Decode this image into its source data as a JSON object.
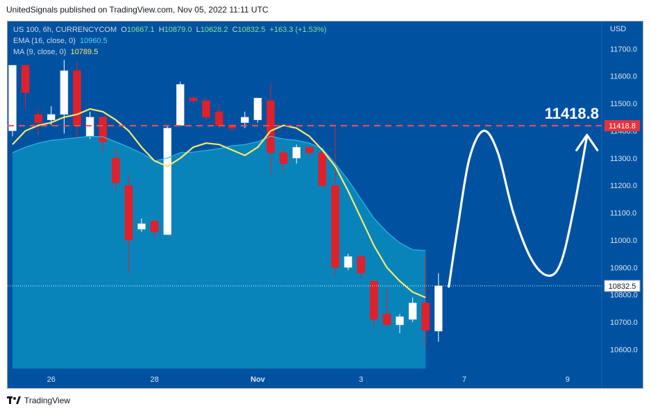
{
  "header": {
    "publisher": "UnitedSignals published on TradingView.com, Nov 05, 2022 11:11 UTC"
  },
  "legend": {
    "symbol": "US 100, 6h, CURRENCYCOM",
    "open_label": "O",
    "open": "10667.1",
    "high_label": "H",
    "high": "10879.0",
    "low_label": "L",
    "low": "10628.2",
    "close_label": "C",
    "close": "10832.5",
    "change": "+163.3 (+1.53%)",
    "ema_label": "EMA (16, close, 0)",
    "ema_value": "10960.5",
    "ma_label": "MA (9, close, 0)",
    "ma_value": "10789.5"
  },
  "footer": {
    "brand": "TradingView"
  },
  "colors": {
    "background": "#0052a1",
    "ema_fill": "#0a87bd",
    "ema_line": "#33b6e6",
    "ma_line": "#f7e96b",
    "up_candle": "#ffffff",
    "down_candle": "#e0202a",
    "target_line": "#ff4a52"
  },
  "chart_data": {
    "type": "candlestick",
    "currency": "USD",
    "ylim": [
      10530,
      11800
    ],
    "yticks": [
      10600,
      10700,
      10800,
      10900,
      11000,
      11100,
      11200,
      11300,
      11400,
      11500,
      11600,
      11700
    ],
    "ytick_labels": [
      "10600.0",
      "10700.0",
      "10800.0",
      "10900.0",
      "11000.0",
      "11100.0",
      "11200.0",
      "11300.0",
      "11400.0",
      "11500.0",
      "11600.0",
      "11700.0"
    ],
    "xticks": [
      {
        "index": 3,
        "label": "26"
      },
      {
        "index": 11,
        "label": "28"
      },
      {
        "index": 19,
        "label": "Nov"
      },
      {
        "index": 27,
        "label": "3"
      },
      {
        "index": 35,
        "label": "7"
      },
      {
        "index": 43,
        "label": "9"
      }
    ],
    "candles": [
      {
        "o": 11400,
        "h": 11640,
        "l": 11380,
        "c": 11640
      },
      {
        "o": 11640,
        "h": 11640,
        "l": 11480,
        "c": 11540
      },
      {
        "o": 11460,
        "h": 11480,
        "l": 11380,
        "c": 11430
      },
      {
        "o": 11440,
        "h": 11490,
        "l": 11420,
        "c": 11460
      },
      {
        "o": 11460,
        "h": 11660,
        "l": 11390,
        "c": 11620
      },
      {
        "o": 11620,
        "h": 11650,
        "l": 11370,
        "c": 11420
      },
      {
        "o": 11380,
        "h": 11470,
        "l": 11370,
        "c": 11450
      },
      {
        "o": 11450,
        "h": 11450,
        "l": 11320,
        "c": 11360
      },
      {
        "o": 11300,
        "h": 11340,
        "l": 11180,
        "c": 11210
      },
      {
        "o": 11200,
        "h": 11240,
        "l": 10880,
        "c": 11000
      },
      {
        "o": 11040,
        "h": 11080,
        "l": 11030,
        "c": 11060
      },
      {
        "o": 11070,
        "h": 11070,
        "l": 11010,
        "c": 11030
      },
      {
        "o": 11020,
        "h": 11420,
        "l": 11020,
        "c": 11410
      },
      {
        "o": 11420,
        "h": 11580,
        "l": 11420,
        "c": 11570
      },
      {
        "o": 11520,
        "h": 11530,
        "l": 11500,
        "c": 11510
      },
      {
        "o": 11510,
        "h": 11520,
        "l": 11440,
        "c": 11450
      },
      {
        "o": 11470,
        "h": 11500,
        "l": 11410,
        "c": 11420
      },
      {
        "o": 11420,
        "h": 11430,
        "l": 11400,
        "c": 11410
      },
      {
        "o": 11430,
        "h": 11470,
        "l": 11410,
        "c": 11450
      },
      {
        "o": 11440,
        "h": 11520,
        "l": 11430,
        "c": 11520
      },
      {
        "o": 11510,
        "h": 11570,
        "l": 11240,
        "c": 11320
      },
      {
        "o": 11320,
        "h": 11340,
        "l": 11250,
        "c": 11280
      },
      {
        "o": 11300,
        "h": 11350,
        "l": 11280,
        "c": 11340
      },
      {
        "o": 11340,
        "h": 11340,
        "l": 11310,
        "c": 11320
      },
      {
        "o": 11320,
        "h": 11330,
        "l": 11190,
        "c": 11200
      },
      {
        "o": 11200,
        "h": 11420,
        "l": 10870,
        "c": 10900
      },
      {
        "o": 10900,
        "h": 10950,
        "l": 10890,
        "c": 10940
      },
      {
        "o": 10940,
        "h": 10950,
        "l": 10860,
        "c": 10880
      },
      {
        "o": 10850,
        "h": 10850,
        "l": 10680,
        "c": 10710
      },
      {
        "o": 10730,
        "h": 10820,
        "l": 10690,
        "c": 10690
      },
      {
        "o": 10690,
        "h": 10730,
        "l": 10660,
        "c": 10720
      },
      {
        "o": 10710,
        "h": 10790,
        "l": 10700,
        "c": 10770
      },
      {
        "o": 10770,
        "h": 10940,
        "l": 10610,
        "c": 10670
      },
      {
        "o": 10667.1,
        "h": 10879.0,
        "l": 10628.2,
        "c": 10832.5
      }
    ],
    "ema": [
      11320,
      11340,
      11355,
      11365,
      11370,
      11375,
      11380,
      11378,
      11360,
      11340,
      11318,
      11290,
      11300,
      11320,
      11322,
      11328,
      11335,
      11345,
      11350,
      11360,
      11380,
      11370,
      11365,
      11355,
      11335,
      11280,
      11220,
      11150,
      11080,
      11030,
      10990,
      10965,
      10962
    ],
    "ma": [
      11350,
      11400,
      11420,
      11430,
      11450,
      11460,
      11480,
      11470,
      11440,
      11400,
      11340,
      11290,
      11270,
      11300,
      11340,
      11355,
      11350,
      11330,
      11310,
      11340,
      11400,
      11420,
      11410,
      11380,
      11330,
      11270,
      11180,
      11080,
      10980,
      10900,
      10850,
      10810,
      10790
    ],
    "last_price": 10832.5,
    "last_price_label": "10832.5",
    "target_price": 11418.8,
    "target_label": "11418.8",
    "target_axis_label": "11418.8",
    "projection_path": [
      {
        "i": 33.8,
        "p": 10830
      },
      {
        "i": 34.5,
        "p": 11050
      },
      {
        "i": 35.4,
        "p": 11300
      },
      {
        "i": 36.5,
        "p": 11400
      },
      {
        "i": 37.6,
        "p": 11320
      },
      {
        "i": 38.8,
        "p": 11100
      },
      {
        "i": 40.2,
        "p": 10930
      },
      {
        "i": 41.5,
        "p": 10870
      },
      {
        "i": 42.5,
        "p": 10920
      },
      {
        "i": 43.5,
        "p": 11120
      },
      {
        "i": 44.5,
        "p": 11380
      }
    ]
  }
}
